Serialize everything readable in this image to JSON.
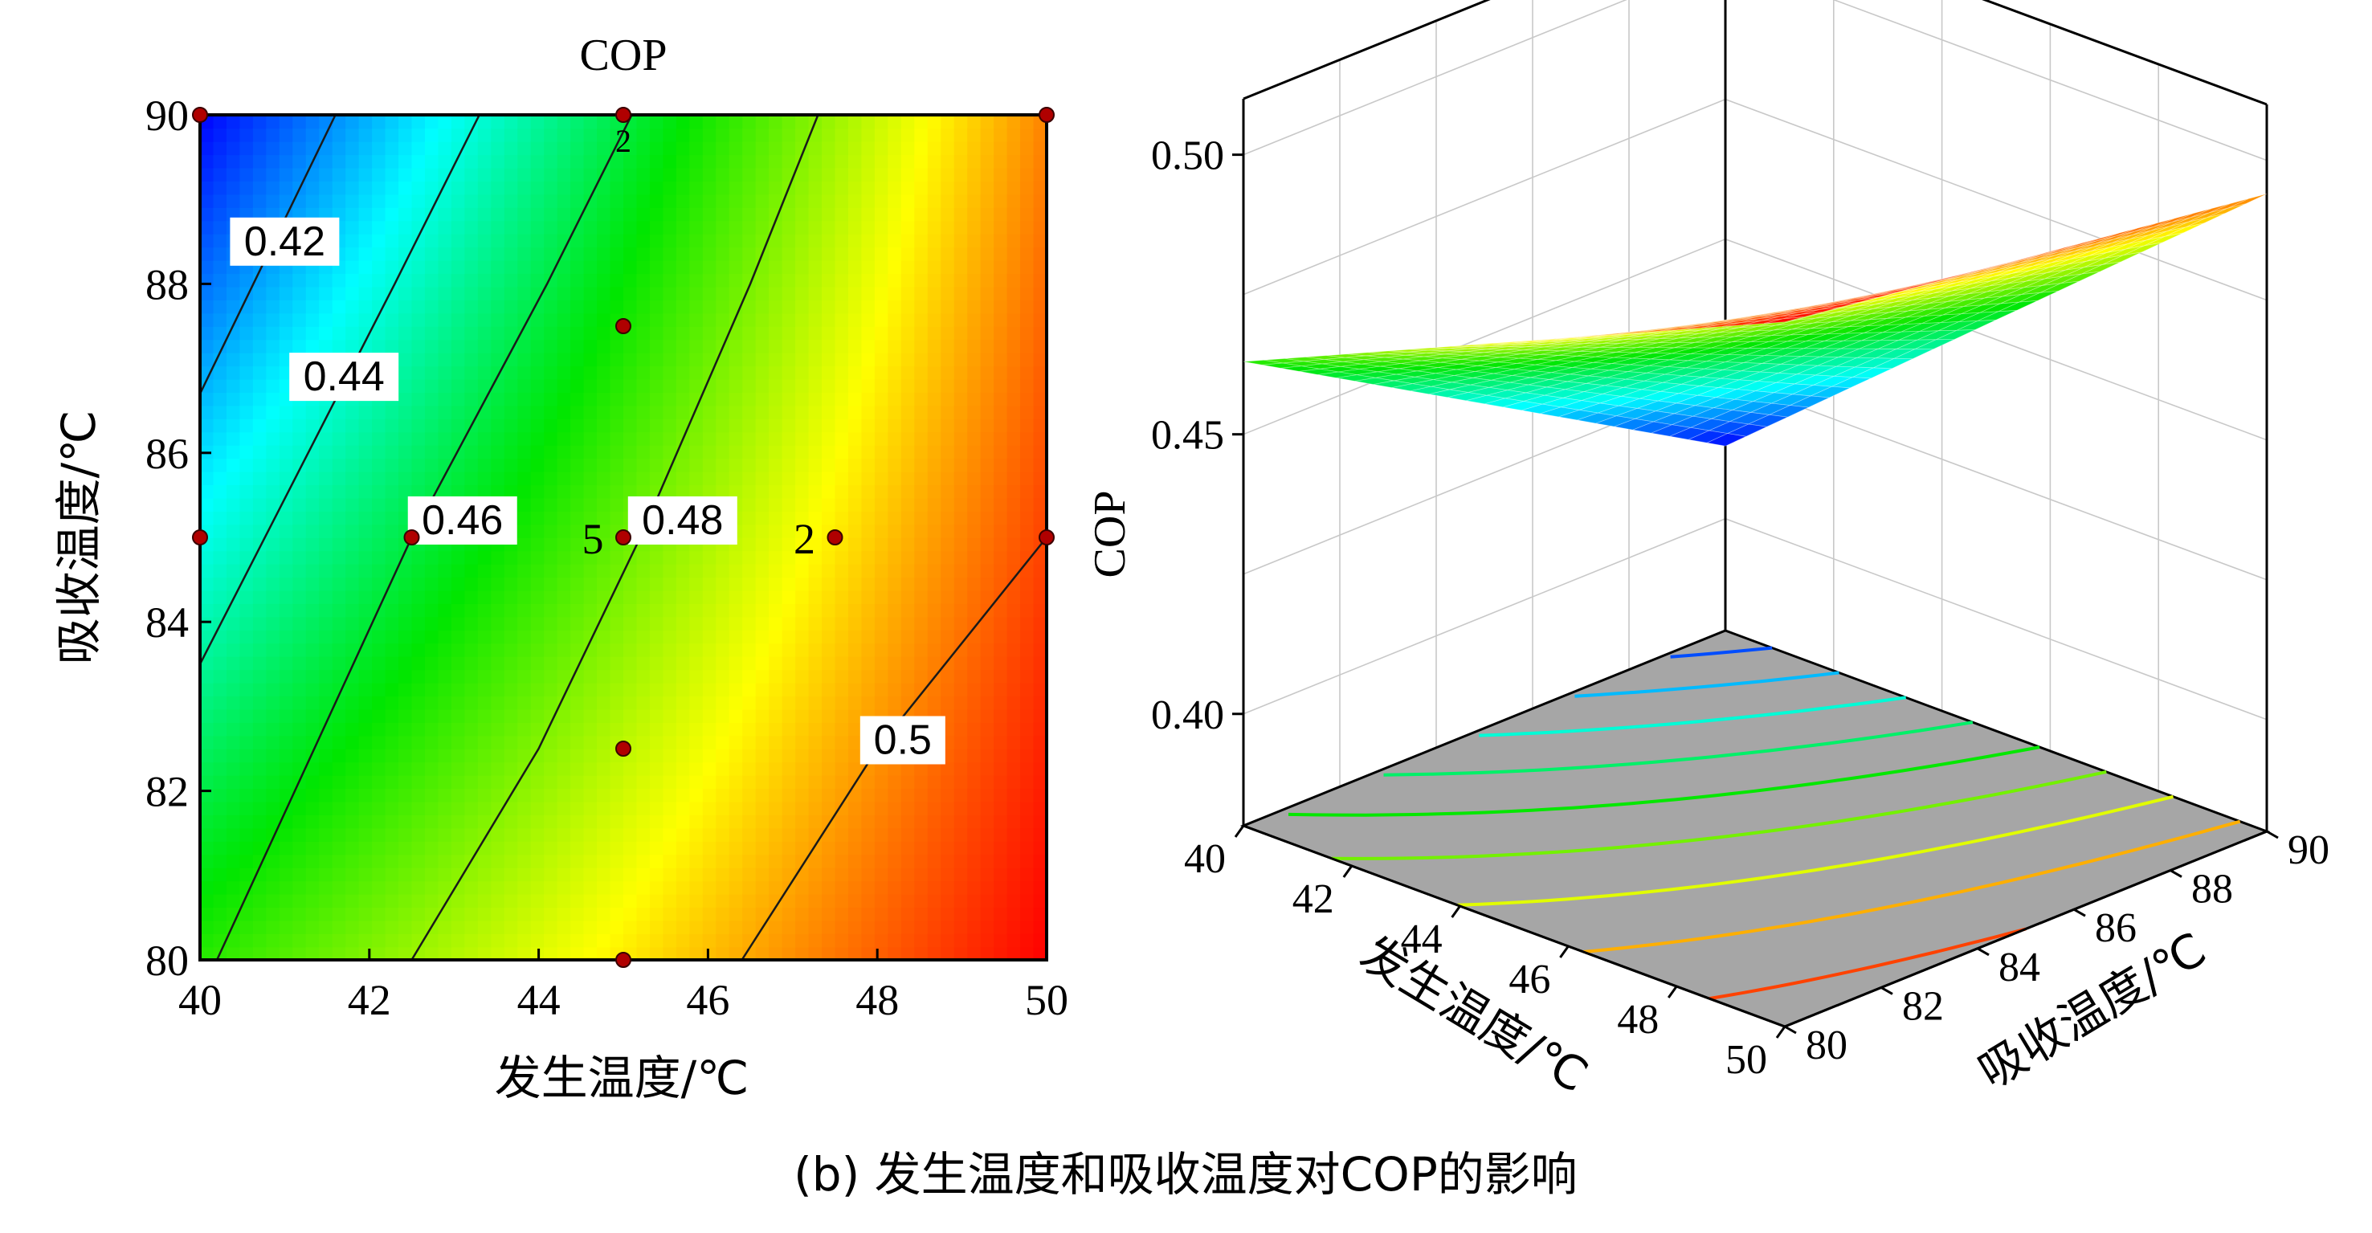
{
  "caption": "(b) 发生温度和吸收温度对COP的影响",
  "colors": {
    "low": "#0000ff",
    "mid": "#00ff00",
    "yellow": "#ffff00",
    "high": "#ff0000",
    "floor": "#a6a6a6"
  },
  "chart_data": [
    {
      "type": "heatmap",
      "subtype": "contour",
      "title": "COP",
      "xlabel": "发生温度/℃",
      "ylabel": "吸收温度/℃",
      "xlim": [
        40,
        50
      ],
      "ylim": [
        80,
        90
      ],
      "xticks": [
        "40",
        "42",
        "44",
        "46",
        "48",
        "50"
      ],
      "yticks": [
        "80",
        "82",
        "84",
        "86",
        "88",
        "90"
      ],
      "contours": [
        {
          "level": 0.42,
          "label": "0.42",
          "label_at": [
            41.0,
            88.5
          ],
          "line": [
            [
              40.0,
              86.7
            ],
            [
              41.6,
              90.0
            ]
          ]
        },
        {
          "level": 0.44,
          "label": "0.44",
          "label_at": [
            41.7,
            86.9
          ],
          "line": [
            [
              40.0,
              83.5
            ],
            [
              42.3,
              88.0
            ],
            [
              43.3,
              90.0
            ]
          ]
        },
        {
          "level": 0.46,
          "label": "0.46",
          "label_at": [
            43.1,
            85.2
          ],
          "line": [
            [
              40.2,
              80.0
            ],
            [
              42.5,
              85.0
            ],
            [
              44.1,
              88.0
            ],
            [
              45.1,
              90.0
            ]
          ]
        },
        {
          "level": 0.48,
          "label": "0.48",
          "label_at": [
            45.7,
            85.2
          ],
          "line": [
            [
              42.5,
              80.0
            ],
            [
              44.0,
              82.5
            ],
            [
              45.2,
              85.0
            ],
            [
              46.5,
              88.0
            ],
            [
              47.3,
              90.0
            ]
          ]
        },
        {
          "level": 0.5,
          "label": "0.5",
          "label_at": [
            48.3,
            82.6
          ],
          "line": [
            [
              46.4,
              80.0
            ],
            [
              48.0,
              82.5
            ],
            [
              50.0,
              85.0
            ]
          ]
        }
      ],
      "design_points": [
        {
          "x": 40.0,
          "y": 90.0,
          "count": ""
        },
        {
          "x": 45.0,
          "y": 90.0,
          "count": "2"
        },
        {
          "x": 50.0,
          "y": 90.0,
          "count": ""
        },
        {
          "x": 45.0,
          "y": 87.5,
          "count": ""
        },
        {
          "x": 40.0,
          "y": 85.0,
          "count": ""
        },
        {
          "x": 42.5,
          "y": 85.0,
          "count": ""
        },
        {
          "x": 45.0,
          "y": 85.0,
          "count": "5"
        },
        {
          "x": 47.5,
          "y": 85.0,
          "count": "2"
        },
        {
          "x": 50.0,
          "y": 85.0,
          "count": ""
        },
        {
          "x": 45.0,
          "y": 82.5,
          "count": ""
        },
        {
          "x": 45.0,
          "y": 80.0,
          "count": ""
        }
      ]
    },
    {
      "type": "surface",
      "xlabel": "发生温度/℃",
      "ylabel": "吸收温度/℃",
      "zlabel": "COP",
      "xlim": [
        40,
        50
      ],
      "ylim": [
        80,
        90
      ],
      "zlim": [
        0.38,
        0.51
      ],
      "xticks": [
        "40",
        "42",
        "44",
        "46",
        "48",
        "50"
      ],
      "yticks": [
        "80",
        "82",
        "84",
        "86",
        "88",
        "90"
      ],
      "zticks": [
        "0.40",
        "0.45",
        "0.50"
      ],
      "corner_values": [
        {
          "x": 40,
          "y": 80,
          "z": 0.463
        },
        {
          "x": 50,
          "y": 80,
          "z": 0.506
        },
        {
          "x": 40,
          "y": 90,
          "z": 0.413
        },
        {
          "x": 50,
          "y": 90,
          "z": 0.494
        }
      ]
    }
  ]
}
